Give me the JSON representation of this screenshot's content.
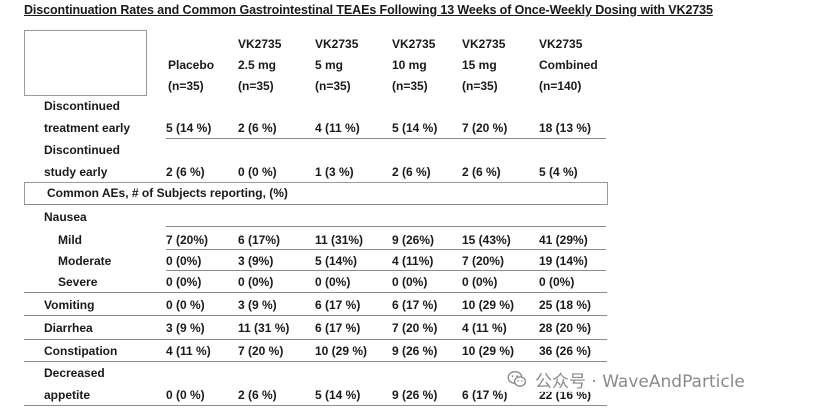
{
  "title": "Discontinuation Rates and Common Gastrointestinal TEAEs Following 13 Weeks of Once-Weekly Dosing with VK2735",
  "columns": [
    {
      "line1": "",
      "line2": "Placebo",
      "line3": "(n=35)"
    },
    {
      "line1": "VK2735",
      "line2": "2.5 mg",
      "line3": "(n=35)"
    },
    {
      "line1": "VK2735",
      "line2": "5 mg",
      "line3": "(n=35)"
    },
    {
      "line1": "VK2735",
      "line2": "10 mg",
      "line3": "(n=35)"
    },
    {
      "line1": "VK2735",
      "line2": "15 mg",
      "line3": "(n=35)"
    },
    {
      "line1": "VK2735",
      "line2": "Combined",
      "line3": "(n=140)"
    }
  ],
  "discontinuation_rows": [
    {
      "label1": "Discontinued",
      "label2": "treatment early",
      "values": [
        "5 (14 %)",
        "2 (6 %)",
        "4 (11 %)",
        "5 (14 %)",
        "7 (20 %)",
        "18 (13 %)"
      ]
    },
    {
      "label1": "Discontinued",
      "label2": "study early",
      "values": [
        "2 (6 %)",
        "0 (0 %)",
        "1 (3 %)",
        "2 (6 %)",
        "2 (6 %)",
        "5 (4 %)"
      ]
    }
  ],
  "section_label": "Common AEs, # of Subjects reporting, (%)",
  "nausea_label": "Nausea",
  "nausea_rows": [
    {
      "label": "Mild",
      "values": [
        "7 (20%)",
        "6 (17%)",
        "11 (31%)",
        "9 (26%)",
        "15 (43%)",
        "41 (29%)"
      ]
    },
    {
      "label": "Moderate",
      "values": [
        "0 (0%)",
        "3 (9%)",
        "5 (14%)",
        "4 (11%)",
        "7 (20%)",
        "19 (14%)"
      ]
    },
    {
      "label": "Severe",
      "values": [
        "0 (0%)",
        "0 (0%)",
        "0 (0%)",
        "0 (0%)",
        "0 (0%)",
        "0 (0%)"
      ]
    }
  ],
  "ae_rows": [
    {
      "label": "Vomiting",
      "values": [
        "0 (0 %)",
        "3 (9 %)",
        "6 (17 %)",
        "6 (17 %)",
        "10 (29 %)",
        "25 (18 %)"
      ]
    },
    {
      "label": "Diarrhea",
      "values": [
        "3 (9 %)",
        "11 (31 %)",
        "6 (17 %)",
        "7 (20 %)",
        "4 (11 %)",
        "28 (20 %)"
      ]
    },
    {
      "label": "Constipation",
      "values": [
        "4 (11 %)",
        "7 (20 %)",
        "10 (29 %)",
        "9 (26 %)",
        "10 (29 %)",
        "36 (26 %)"
      ]
    }
  ],
  "appetite_row": {
    "label1": "Decreased",
    "label2": "appetite",
    "values": [
      "0 (0 %)",
      "2 (6 %)",
      "5 (14 %)",
      "9 (26 %)",
      "6 (17 %)",
      "22 (16 %)"
    ]
  },
  "watermark": {
    "icon": "wechat-icon",
    "text": "公众号 · WaveAndParticle",
    "color": "#8a8a8a"
  }
}
